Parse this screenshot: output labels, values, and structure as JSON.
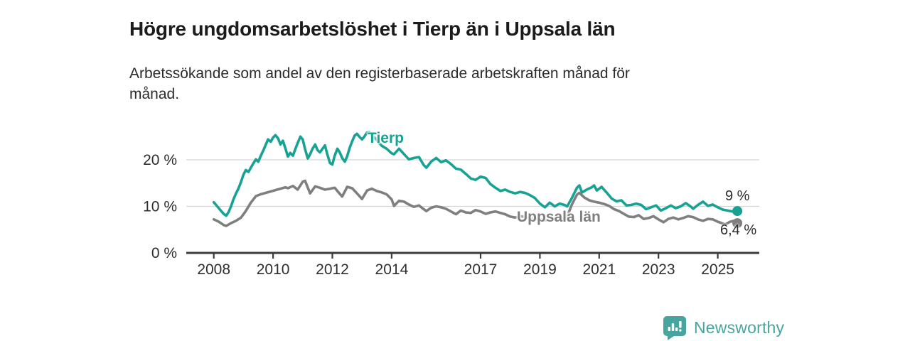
{
  "header": {
    "title": "Högre ungdomsarbetslöshet i Tierp än i Uppsala län",
    "subtitle_lines": [
      "Arbetssökande som andel av den registerbaserade arbetskraften månad för",
      "månad."
    ]
  },
  "chart_data": {
    "type": "line",
    "title": "Högre ungdomsarbetslöshet i Tierp än i Uppsala län",
    "subtitle": "Arbetssökande som andel av den registerbaserade arbetskraften månad för månad.",
    "xlabel": "",
    "ylabel": "",
    "unit": "%",
    "x_format": "decimal_year",
    "x_range": [
      2008,
      2026.2
    ],
    "ylim": [
      0,
      28
    ],
    "grid": "horizontal",
    "legend_position": "inline-labels",
    "yticks": [
      {
        "value": 0,
        "label": "0 %"
      },
      {
        "value": 10,
        "label": "10 %"
      },
      {
        "value": 20,
        "label": "20 %"
      }
    ],
    "xticks": [
      {
        "value": 2008,
        "label": "2008"
      },
      {
        "value": 2010,
        "label": "2010"
      },
      {
        "value": 2012,
        "label": "2012"
      },
      {
        "value": 2014,
        "label": "2014"
      },
      {
        "value": 2017,
        "label": "2017"
      },
      {
        "value": 2019,
        "label": "2019"
      },
      {
        "value": 2021,
        "label": "2021"
      },
      {
        "value": 2023,
        "label": "2023"
      },
      {
        "value": 2025,
        "label": "2025"
      }
    ],
    "series": [
      {
        "name": "Tierp",
        "color": "#17a293",
        "end_label": "9 %",
        "end_value": 9.0,
        "points": [
          [
            2008.0,
            10.9
          ],
          [
            2008.17,
            9.6
          ],
          [
            2008.33,
            8.4
          ],
          [
            2008.42,
            8.0
          ],
          [
            2008.5,
            8.8
          ],
          [
            2008.58,
            10.0
          ],
          [
            2008.67,
            11.6
          ],
          [
            2008.75,
            12.8
          ],
          [
            2008.83,
            13.8
          ],
          [
            2008.92,
            15.3
          ],
          [
            2009.0,
            16.8
          ],
          [
            2009.08,
            17.8
          ],
          [
            2009.17,
            17.4
          ],
          [
            2009.25,
            18.3
          ],
          [
            2009.33,
            19.2
          ],
          [
            2009.42,
            20.1
          ],
          [
            2009.5,
            19.6
          ],
          [
            2009.58,
            20.8
          ],
          [
            2009.67,
            22.0
          ],
          [
            2009.75,
            23.2
          ],
          [
            2009.83,
            24.4
          ],
          [
            2009.92,
            23.9
          ],
          [
            2010.0,
            24.8
          ],
          [
            2010.08,
            25.3
          ],
          [
            2010.17,
            24.6
          ],
          [
            2010.25,
            23.3
          ],
          [
            2010.33,
            24.1
          ],
          [
            2010.42,
            22.4
          ],
          [
            2010.5,
            20.7
          ],
          [
            2010.58,
            21.5
          ],
          [
            2010.67,
            20.9
          ],
          [
            2010.75,
            22.3
          ],
          [
            2010.83,
            23.6
          ],
          [
            2010.92,
            25.0
          ],
          [
            2011.0,
            24.4
          ],
          [
            2011.08,
            22.3
          ],
          [
            2011.17,
            20.3
          ],
          [
            2011.25,
            21.2
          ],
          [
            2011.33,
            22.4
          ],
          [
            2011.42,
            23.3
          ],
          [
            2011.5,
            22.1
          ],
          [
            2011.58,
            21.6
          ],
          [
            2011.67,
            22.4
          ],
          [
            2011.75,
            23.1
          ],
          [
            2011.83,
            21.2
          ],
          [
            2011.92,
            19.3
          ],
          [
            2012.0,
            19.0
          ],
          [
            2012.08,
            20.9
          ],
          [
            2012.17,
            22.4
          ],
          [
            2012.25,
            21.6
          ],
          [
            2012.33,
            20.4
          ],
          [
            2012.42,
            19.6
          ],
          [
            2012.5,
            20.8
          ],
          [
            2012.58,
            22.5
          ],
          [
            2012.67,
            24.0
          ],
          [
            2012.75,
            25.2
          ],
          [
            2012.83,
            25.6
          ],
          [
            2012.92,
            24.9
          ],
          [
            2013.0,
            24.4
          ],
          [
            2013.08,
            25.0
          ],
          [
            2013.17,
            25.9
          ],
          [
            2013.25,
            26.0
          ],
          [
            2013.33,
            25.4
          ],
          [
            2013.42,
            24.8
          ],
          [
            2013.5,
            24.3
          ],
          [
            2013.58,
            23.6
          ],
          [
            2013.67,
            23.0
          ],
          [
            2013.83,
            22.4
          ],
          [
            2014.0,
            21.4
          ],
          [
            2014.08,
            21.2
          ],
          [
            2014.25,
            22.4
          ],
          [
            2014.42,
            21.2
          ],
          [
            2014.58,
            20.1
          ],
          [
            2014.75,
            20.4
          ],
          [
            2014.92,
            20.6
          ],
          [
            2015.08,
            18.9
          ],
          [
            2015.17,
            18.3
          ],
          [
            2015.33,
            19.6
          ],
          [
            2015.5,
            20.4
          ],
          [
            2015.67,
            19.5
          ],
          [
            2015.83,
            19.9
          ],
          [
            2016.0,
            19.1
          ],
          [
            2016.17,
            18.1
          ],
          [
            2016.33,
            17.9
          ],
          [
            2016.5,
            17.0
          ],
          [
            2016.67,
            16.0
          ],
          [
            2016.83,
            15.7
          ],
          [
            2017.0,
            16.4
          ],
          [
            2017.17,
            16.1
          ],
          [
            2017.33,
            14.8
          ],
          [
            2017.5,
            14.0
          ],
          [
            2017.67,
            13.3
          ],
          [
            2017.83,
            13.6
          ],
          [
            2018.0,
            13.1
          ],
          [
            2018.17,
            12.8
          ],
          [
            2018.33,
            13.1
          ],
          [
            2018.5,
            12.9
          ],
          [
            2018.67,
            12.4
          ],
          [
            2018.83,
            11.8
          ],
          [
            2019.0,
            10.6
          ],
          [
            2019.17,
            9.8
          ],
          [
            2019.33,
            10.8
          ],
          [
            2019.5,
            10.0
          ],
          [
            2019.67,
            10.6
          ],
          [
            2019.83,
            10.3
          ],
          [
            2019.92,
            10.0
          ],
          [
            2020.08,
            11.8
          ],
          [
            2020.25,
            14.0
          ],
          [
            2020.33,
            14.5
          ],
          [
            2020.42,
            13.0
          ],
          [
            2020.58,
            13.6
          ],
          [
            2020.75,
            14.1
          ],
          [
            2020.83,
            14.5
          ],
          [
            2020.92,
            13.4
          ],
          [
            2021.08,
            14.2
          ],
          [
            2021.25,
            13.0
          ],
          [
            2021.42,
            11.7
          ],
          [
            2021.58,
            11.1
          ],
          [
            2021.75,
            11.3
          ],
          [
            2021.92,
            10.2
          ],
          [
            2022.08,
            10.3
          ],
          [
            2022.25,
            10.6
          ],
          [
            2022.42,
            10.3
          ],
          [
            2022.58,
            9.4
          ],
          [
            2022.75,
            9.8
          ],
          [
            2022.92,
            10.2
          ],
          [
            2023.08,
            9.1
          ],
          [
            2023.25,
            9.6
          ],
          [
            2023.42,
            10.2
          ],
          [
            2023.58,
            9.6
          ],
          [
            2023.75,
            10.0
          ],
          [
            2023.92,
            10.7
          ],
          [
            2024.08,
            10.0
          ],
          [
            2024.17,
            9.5
          ],
          [
            2024.33,
            10.3
          ],
          [
            2024.5,
            11.0
          ],
          [
            2024.67,
            10.1
          ],
          [
            2024.83,
            10.4
          ],
          [
            2025.0,
            9.8
          ],
          [
            2025.17,
            9.3
          ],
          [
            2025.33,
            9.1
          ],
          [
            2025.5,
            8.9
          ],
          [
            2025.66,
            9.0
          ]
        ]
      },
      {
        "name": "Uppsala län",
        "color": "#7f7f7f",
        "end_label": "6,4 %",
        "end_value": 6.4,
        "points": [
          [
            2008.0,
            7.2
          ],
          [
            2008.17,
            6.7
          ],
          [
            2008.33,
            6.0
          ],
          [
            2008.42,
            5.8
          ],
          [
            2008.58,
            6.4
          ],
          [
            2008.75,
            6.9
          ],
          [
            2008.92,
            7.6
          ],
          [
            2009.08,
            9.0
          ],
          [
            2009.25,
            10.8
          ],
          [
            2009.42,
            12.2
          ],
          [
            2009.58,
            12.6
          ],
          [
            2009.75,
            12.9
          ],
          [
            2009.92,
            13.2
          ],
          [
            2010.08,
            13.5
          ],
          [
            2010.25,
            13.8
          ],
          [
            2010.42,
            14.1
          ],
          [
            2010.5,
            13.9
          ],
          [
            2010.67,
            14.4
          ],
          [
            2010.83,
            13.6
          ],
          [
            2011.0,
            15.3
          ],
          [
            2011.08,
            15.5
          ],
          [
            2011.25,
            12.8
          ],
          [
            2011.42,
            14.3
          ],
          [
            2011.58,
            14.0
          ],
          [
            2011.75,
            13.6
          ],
          [
            2011.92,
            13.8
          ],
          [
            2012.08,
            14.0
          ],
          [
            2012.25,
            12.7
          ],
          [
            2012.33,
            12.1
          ],
          [
            2012.5,
            14.2
          ],
          [
            2012.67,
            13.9
          ],
          [
            2012.83,
            12.8
          ],
          [
            2013.0,
            11.6
          ],
          [
            2013.17,
            13.4
          ],
          [
            2013.33,
            13.8
          ],
          [
            2013.5,
            13.3
          ],
          [
            2013.67,
            13.0
          ],
          [
            2013.83,
            12.6
          ],
          [
            2014.0,
            11.5
          ],
          [
            2014.08,
            10.1
          ],
          [
            2014.25,
            11.2
          ],
          [
            2014.42,
            11.0
          ],
          [
            2014.58,
            10.4
          ],
          [
            2014.75,
            9.9
          ],
          [
            2014.92,
            10.2
          ],
          [
            2015.08,
            9.4
          ],
          [
            2015.17,
            9.0
          ],
          [
            2015.33,
            9.7
          ],
          [
            2015.5,
            10.0
          ],
          [
            2015.67,
            9.8
          ],
          [
            2015.83,
            9.5
          ],
          [
            2016.0,
            8.9
          ],
          [
            2016.17,
            8.3
          ],
          [
            2016.33,
            9.1
          ],
          [
            2016.5,
            8.7
          ],
          [
            2016.67,
            8.6
          ],
          [
            2016.83,
            9.2
          ],
          [
            2017.0,
            8.9
          ],
          [
            2017.17,
            8.4
          ],
          [
            2017.33,
            8.7
          ],
          [
            2017.5,
            8.9
          ],
          [
            2017.67,
            8.6
          ],
          [
            2017.83,
            8.3
          ],
          [
            2018.0,
            7.8
          ],
          [
            2018.17,
            7.6
          ],
          [
            2018.33,
            7.9
          ],
          [
            2018.5,
            7.7
          ],
          [
            2018.67,
            7.5
          ],
          [
            2018.83,
            7.4
          ],
          [
            2019.0,
            7.2
          ],
          [
            2019.17,
            7.0
          ],
          [
            2019.33,
            7.2
          ],
          [
            2019.5,
            7.3
          ],
          [
            2019.67,
            7.2
          ],
          [
            2019.83,
            7.4
          ],
          [
            2019.92,
            7.8
          ],
          [
            2020.08,
            10.4
          ],
          [
            2020.25,
            12.5
          ],
          [
            2020.33,
            12.9
          ],
          [
            2020.5,
            11.9
          ],
          [
            2020.67,
            11.3
          ],
          [
            2020.83,
            11.0
          ],
          [
            2021.0,
            10.8
          ],
          [
            2021.17,
            10.5
          ],
          [
            2021.33,
            10.1
          ],
          [
            2021.5,
            9.4
          ],
          [
            2021.67,
            9.0
          ],
          [
            2021.83,
            8.4
          ],
          [
            2022.0,
            7.8
          ],
          [
            2022.17,
            7.7
          ],
          [
            2022.33,
            8.1
          ],
          [
            2022.5,
            7.3
          ],
          [
            2022.67,
            7.5
          ],
          [
            2022.83,
            7.9
          ],
          [
            2023.0,
            7.2
          ],
          [
            2023.17,
            6.6
          ],
          [
            2023.33,
            7.3
          ],
          [
            2023.5,
            7.6
          ],
          [
            2023.67,
            7.2
          ],
          [
            2023.83,
            7.5
          ],
          [
            2024.0,
            7.9
          ],
          [
            2024.17,
            7.7
          ],
          [
            2024.33,
            7.2
          ],
          [
            2024.5,
            6.9
          ],
          [
            2024.67,
            7.3
          ],
          [
            2024.83,
            7.2
          ],
          [
            2025.0,
            6.7
          ],
          [
            2025.17,
            6.3
          ],
          [
            2025.25,
            6.1
          ],
          [
            2025.42,
            6.7
          ],
          [
            2025.55,
            6.9
          ],
          [
            2025.66,
            6.4
          ]
        ]
      }
    ]
  },
  "footer": {
    "brand": "Newsworthy",
    "logo_icon": "bar-chart-speech-bubble-icon"
  },
  "colors": {
    "accent_teal": "#17a293",
    "series_gray": "#7f7f7f",
    "grid": "#d6d6d6",
    "axis": "#3b3b3b",
    "tick_text": "#2e2e2e",
    "title_text": "#1b1b1b",
    "body_text": "#2b2b2b",
    "brand_teal": "#48a49e"
  }
}
